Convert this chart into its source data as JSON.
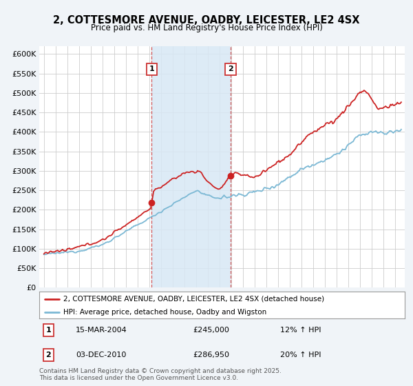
{
  "title": "2, COTTESMORE AVENUE, OADBY, LEICESTER, LE2 4SX",
  "subtitle": "Price paid vs. HM Land Registry's House Price Index (HPI)",
  "background_color": "#f0f4f8",
  "plot_bg_color": "#ffffff",
  "purchase1_date": "15-MAR-2004",
  "purchase1_price": 245000,
  "purchase1_pct": "12% ↑ HPI",
  "purchase2_date": "03-DEC-2010",
  "purchase2_price": 286950,
  "purchase2_pct": "20% ↑ HPI",
  "legend_label_red": "2, COTTESMORE AVENUE, OADBY, LEICESTER, LE2 4SX (detached house)",
  "legend_label_blue": "HPI: Average price, detached house, Oadby and Wigston",
  "footer": "Contains HM Land Registry data © Crown copyright and database right 2025.\nThis data is licensed under the Open Government Licence v3.0.",
  "ylim": [
    0,
    620000
  ],
  "yticks": [
    0,
    50000,
    100000,
    150000,
    200000,
    250000,
    300000,
    350000,
    400000,
    450000,
    500000,
    550000,
    600000
  ],
  "ytick_labels": [
    "£0",
    "£50K",
    "£100K",
    "£150K",
    "£200K",
    "£250K",
    "£300K",
    "£350K",
    "£400K",
    "£450K",
    "£500K",
    "£550K",
    "£600K"
  ],
  "red_color": "#cc2222",
  "blue_color": "#7bb8d4",
  "shade_color": "#d8e8f5",
  "vline_color": "#cc3333",
  "purchase1_x": 2004.2,
  "purchase2_x": 2010.92,
  "xlim_left": 1994.6,
  "xlim_right": 2025.8
}
